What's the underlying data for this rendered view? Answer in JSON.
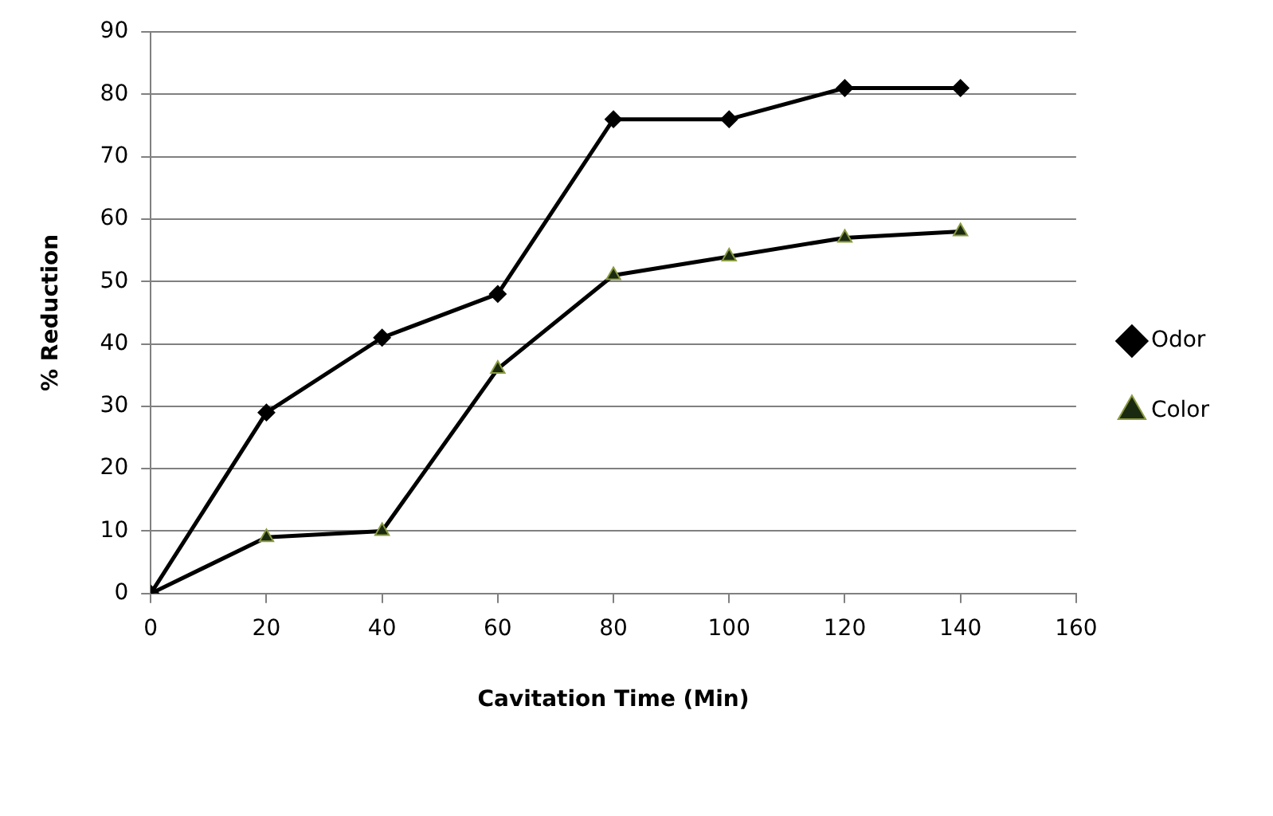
{
  "chart_data": {
    "type": "line",
    "xlabel": "Cavitation Time (Min)",
    "ylabel": "% Reduction",
    "x": [
      0,
      20,
      40,
      60,
      80,
      100,
      120,
      140
    ],
    "series": [
      {
        "name": "Odor",
        "color": "#000000",
        "marker": "diamond",
        "values": [
          0,
          29,
          41,
          48,
          76,
          76,
          81,
          81
        ]
      },
      {
        "name": "Color",
        "color": "#000000",
        "marker": "triangle",
        "values": [
          0,
          9,
          10,
          36,
          51,
          54,
          57,
          58
        ]
      }
    ],
    "xlim": [
      0,
      160
    ],
    "xticks": [
      0,
      20,
      40,
      60,
      80,
      100,
      120,
      140,
      160
    ],
    "ylim": [
      0,
      90
    ],
    "yticks": [
      0,
      10,
      20,
      30,
      40,
      50,
      60,
      70,
      80,
      90
    ],
    "grid": "y",
    "legend": "right",
    "line_style": "solid"
  }
}
